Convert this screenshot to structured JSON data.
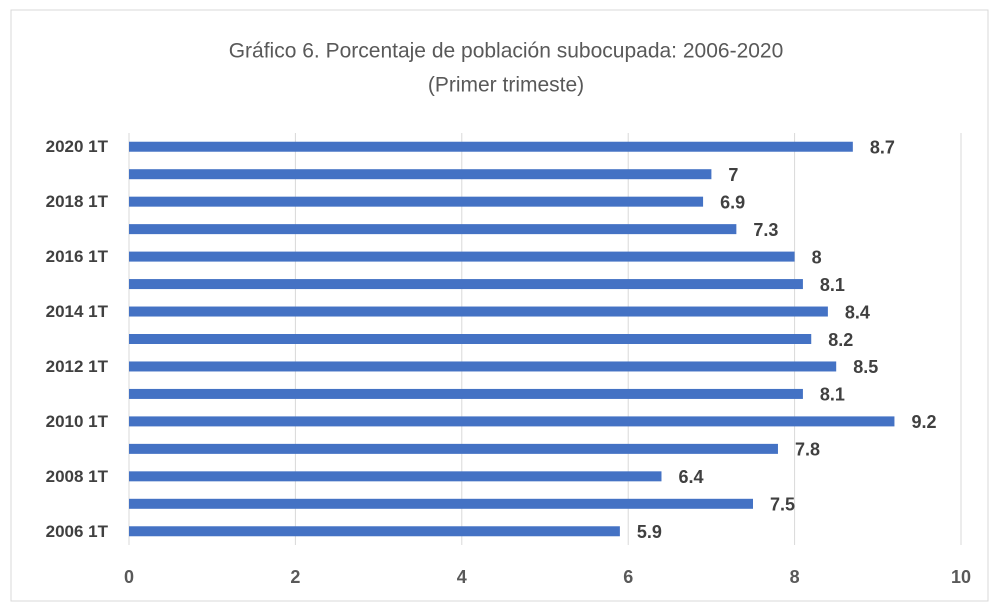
{
  "chart_data": {
    "type": "bar",
    "orientation": "horizontal",
    "title": "Gráfico 6. Porcentaje de población subocupada: 2006-2020",
    "subtitle": "(Primer trimeste)",
    "categories": [
      "2006 1T",
      null,
      "2008 1T",
      null,
      "2010 1T",
      null,
      "2012 1T",
      null,
      "2014 1T",
      null,
      "2016 1T",
      null,
      "2018 1T",
      null,
      "2020 1T"
    ],
    "values": [
      5.9,
      7.5,
      6.4,
      7.8,
      9.2,
      8.1,
      8.5,
      8.2,
      8.4,
      8.1,
      8,
      7.3,
      6.9,
      7,
      8.7
    ],
    "color": "#4472c4",
    "xlim": [
      0,
      10
    ],
    "xticks": [
      0,
      2,
      4,
      6,
      8,
      10
    ],
    "grid": true
  }
}
